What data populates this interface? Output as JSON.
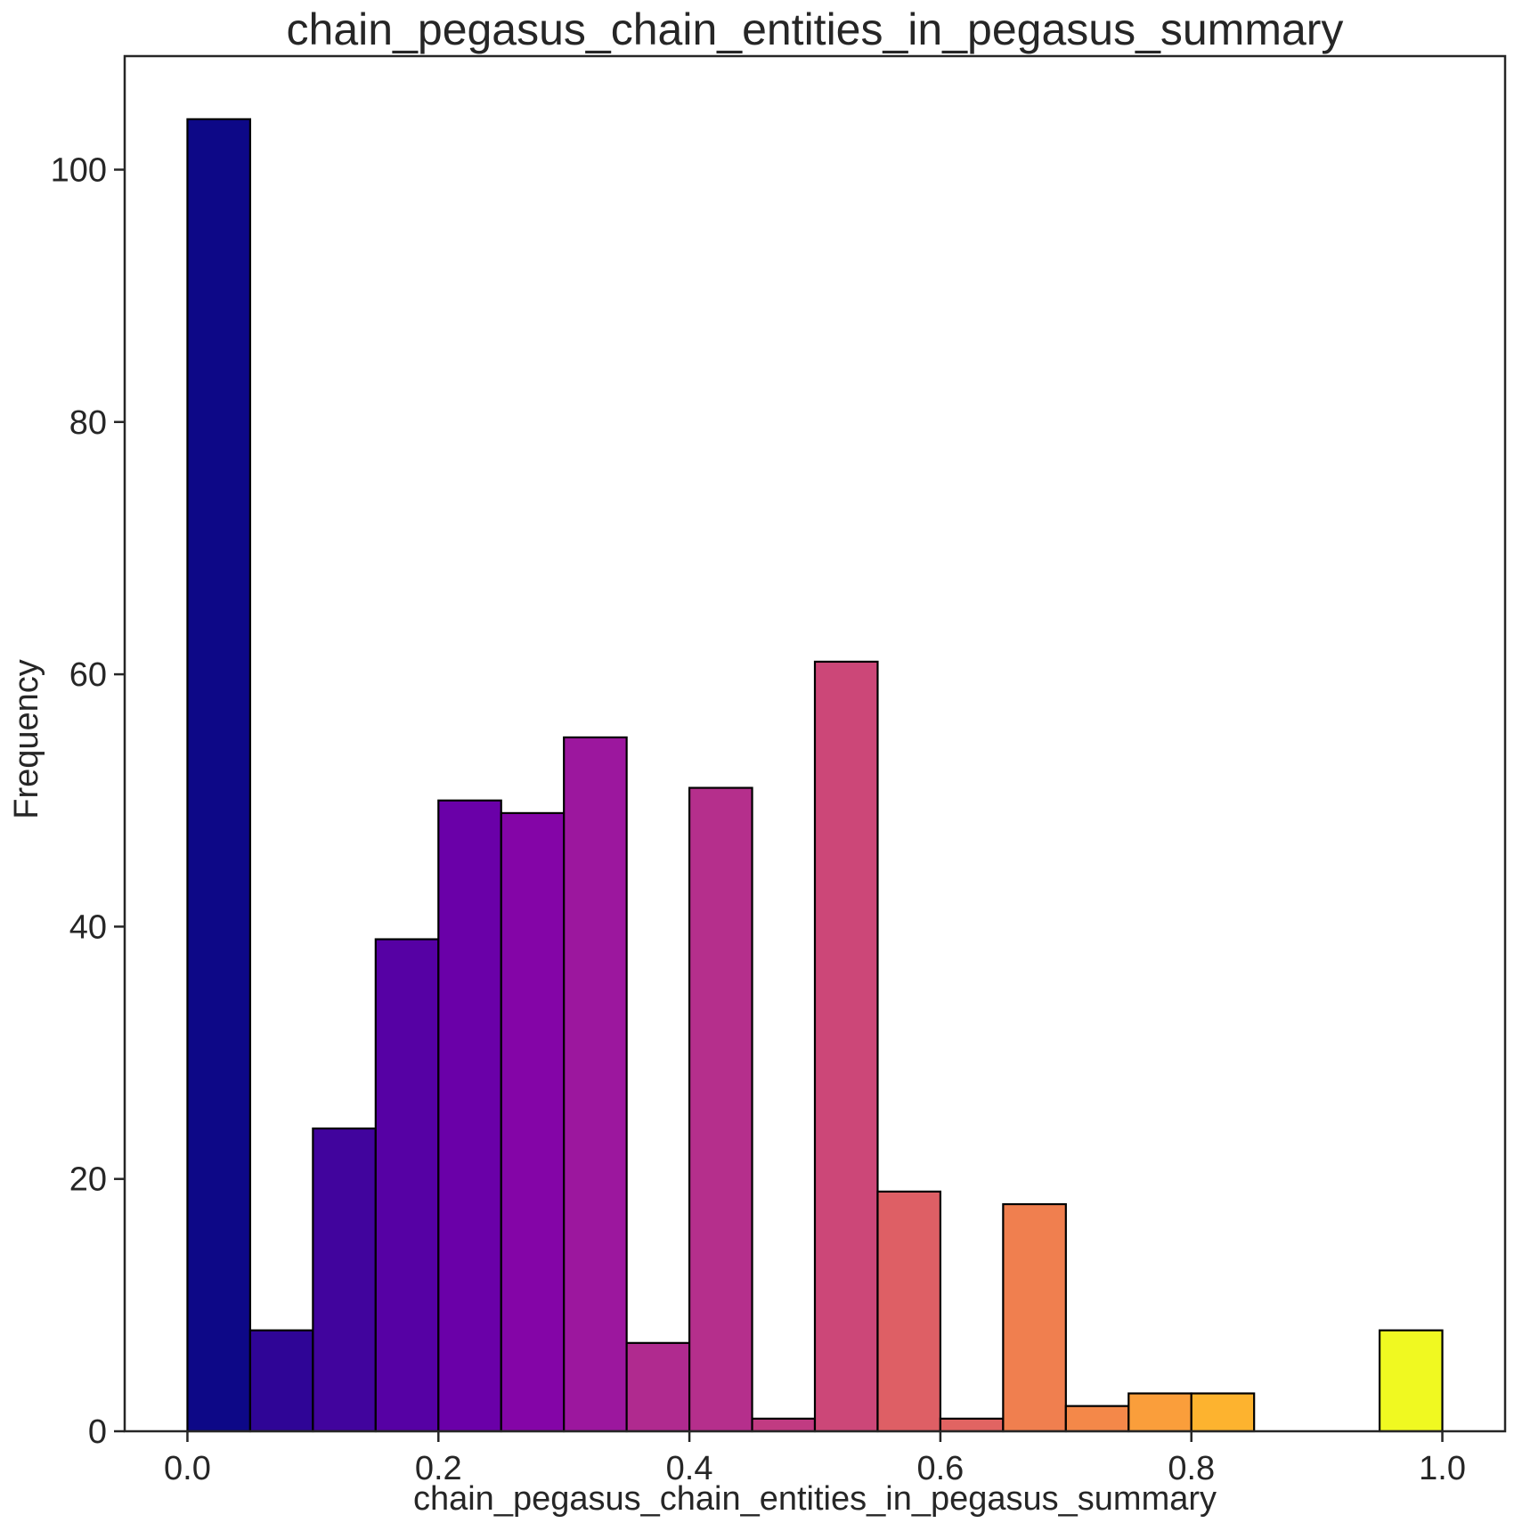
{
  "chart_data": {
    "type": "bar",
    "title": "chain_pegasus_chain_entities_in_pegasus_summary",
    "xlabel": "chain_pegasus_chain_entities_in_pegasus_summary",
    "ylabel": "Frequency",
    "bin_edges": [
      0.0,
      0.05,
      0.1,
      0.15,
      0.2,
      0.25,
      0.3,
      0.35,
      0.4,
      0.45,
      0.5,
      0.55,
      0.6,
      0.65,
      0.7,
      0.75,
      0.8,
      0.85,
      0.9,
      0.95,
      1.0
    ],
    "values": [
      104,
      8,
      24,
      39,
      50,
      49,
      55,
      7,
      51,
      1,
      61,
      19,
      1,
      18,
      2,
      3,
      3,
      0,
      0,
      8
    ],
    "colors": [
      "#0d0887",
      "#2f0596",
      "#41049d",
      "#5601a4",
      "#6a00a8",
      "#8405a7",
      "#9c179e",
      "#b02a8f",
      "#b52f8c",
      "#c13b82",
      "#cc4778",
      "#de5f65",
      "#e16462",
      "#f07f4f",
      "#f48849",
      "#fa9e3b",
      "#fdb32f",
      "#fcc926",
      "#f6e826",
      "#f0f921"
    ],
    "xlim": [
      -0.05,
      1.05
    ],
    "ylim": [
      0,
      109
    ],
    "xticks": [
      0.0,
      0.2,
      0.4,
      0.6,
      0.8,
      1.0
    ],
    "xtick_labels": [
      "0.0",
      "0.2",
      "0.4",
      "0.6",
      "0.8",
      "1.0"
    ],
    "yticks": [
      0,
      20,
      40,
      60,
      80,
      100
    ],
    "ytick_labels": [
      "0",
      "20",
      "40",
      "60",
      "80",
      "100"
    ],
    "grid": false,
    "legend": "none"
  }
}
